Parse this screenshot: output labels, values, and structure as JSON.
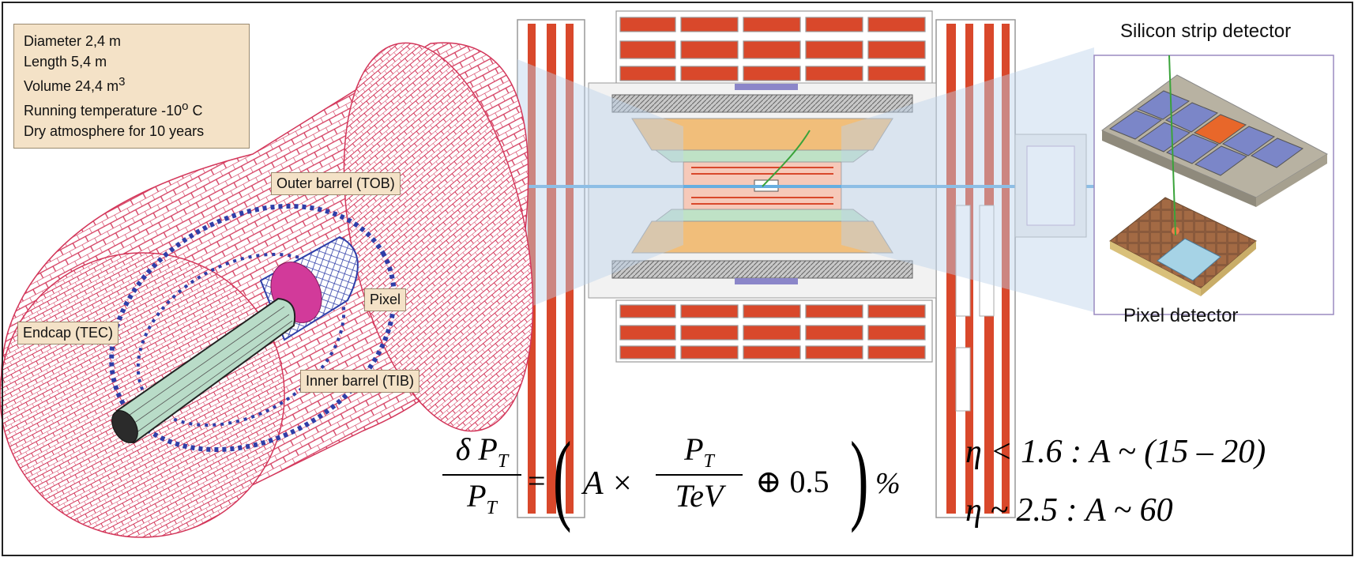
{
  "specs": [
    "Diameter 2,4 m",
    "Length 5,4 m",
    "Volume 24,4 m",
    "Running temperature -10",
    "Dry atmosphere for 10 years"
  ],
  "spec_sup": {
    "volume": "3",
    "temp": "o",
    "temp_unit": " C"
  },
  "labels": {
    "outer_barrel": "Outer barrel (TOB)",
    "pixel": "Pixel",
    "endcap": "Endcap (TEC)",
    "inner_barrel": "Inner barrel (TIB)"
  },
  "detectors": {
    "silicon_strip": "Silicon strip detector",
    "pixel": "Pixel detector"
  },
  "formula": {
    "lhs_num": "δ P",
    "lhs_den": "P",
    "sub_T": "T",
    "eq": "=",
    "A_times": "A ×",
    "rhs_num": "P",
    "rhs_den": "TeV",
    "oplus": "⊕  0.5",
    "percent": "%"
  },
  "eta_lines": [
    "η < 1.6 :  A ~ (15 – 20)",
    "η ~ 2.5 :  A ~ 60"
  ],
  "colors": {
    "mesh": "#d3365a",
    "blue": "#2f3ea8",
    "red": "#d9482b",
    "tan": "#f4e2c7"
  }
}
